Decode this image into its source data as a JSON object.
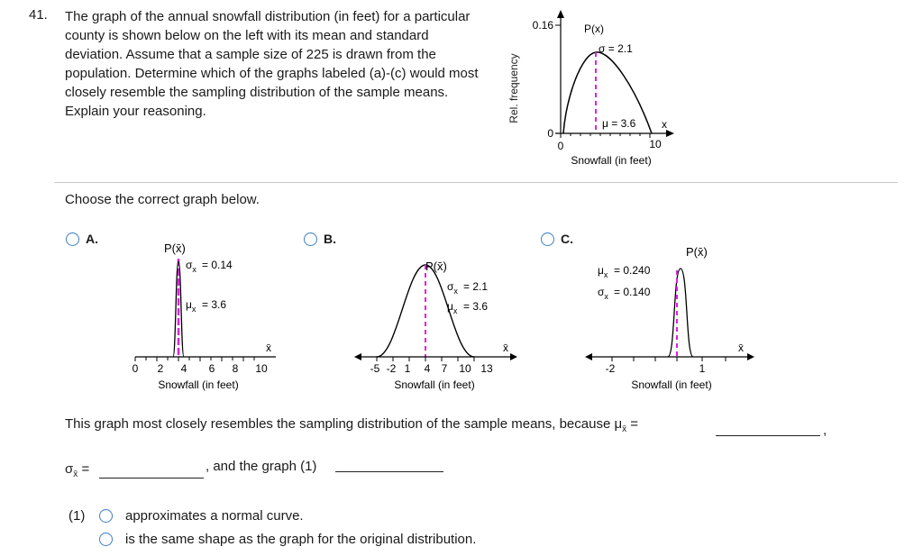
{
  "question": {
    "number": "41.",
    "text": "The graph of the annual snowfall distribution (in feet) for a particular county is shown below on the left with its mean and standard deviation. Assume that a sample size of 225 is drawn from the population. Determine which of the graphs labeled (a)-(c) would most closely resemble the sampling distribution of the sample means. Explain your reasoning."
  },
  "original_graph": {
    "y_label": "Rel. frequency",
    "y_tick_top": "0.16",
    "y_tick_bottom": "0",
    "func_label": "P(x)",
    "sigma_label": "σ = 2.1",
    "mu_label": "μ = 3.6",
    "x_axis_var": "x",
    "x_tick_0": "0",
    "x_tick_10": "10",
    "x_label": "Snowfall (in feet)"
  },
  "prompt": "Choose the correct graph below.",
  "options": {
    "a": {
      "letter": "A.",
      "func_label": "P(x̄)",
      "sigma": "= 0.14",
      "mu": "= 3.6",
      "ticks": [
        "0",
        "2",
        "4",
        "6",
        "8",
        "10"
      ],
      "x_label": "Snowfall (in feet)"
    },
    "b": {
      "letter": "B.",
      "func_label": "P(x̄)",
      "sigma": "= 2.1",
      "mu": "= 3.6",
      "ticks": [
        "-5",
        "-2",
        "1",
        "4",
        "7",
        "10",
        "13"
      ],
      "x_label": "Snowfall (in feet)"
    },
    "c": {
      "letter": "C.",
      "func_label": "P(x̄)",
      "mu": "= 0.240",
      "sigma": "= 0.140",
      "ticks": [
        "-2",
        "1"
      ],
      "x_label": "Snowfall (in feet)"
    }
  },
  "explanation": {
    "sentence_start": "This graph most closely resembles the sampling distribution of the sample means, because",
    "mu_eq": "=",
    "comma": ",",
    "sigma_eq": "=",
    "and_graph": ", and the graph (1)"
  },
  "choices": {
    "label": "(1)",
    "items": [
      "approximates a normal curve.",
      "is the same shape as the graph for the original distribution."
    ]
  },
  "colors": {
    "accent": "#3b7fc4",
    "mean_line": "#e020e0",
    "curve": "#000000"
  }
}
